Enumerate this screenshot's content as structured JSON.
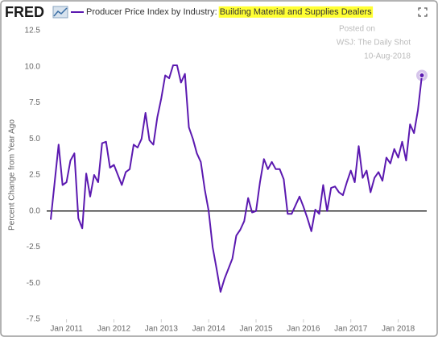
{
  "chart_data": {
    "type": "line",
    "brand": "FRED",
    "ylabel": "Percent Change from Year Ago",
    "annotations": [
      "Posted on",
      "WSJ: The Daily Shot",
      "10-Aug-2018"
    ],
    "x": [
      "2010-09",
      "2010-10",
      "2010-11",
      "2010-12",
      "2011-01",
      "2011-02",
      "2011-03",
      "2011-04",
      "2011-05",
      "2011-06",
      "2011-07",
      "2011-08",
      "2011-09",
      "2011-10",
      "2011-11",
      "2011-12",
      "2012-01",
      "2012-02",
      "2012-03",
      "2012-04",
      "2012-05",
      "2012-06",
      "2012-07",
      "2012-08",
      "2012-09",
      "2012-10",
      "2012-11",
      "2012-12",
      "2013-01",
      "2013-02",
      "2013-03",
      "2013-04",
      "2013-05",
      "2013-06",
      "2013-07",
      "2013-08",
      "2013-09",
      "2013-10",
      "2013-11",
      "2013-12",
      "2014-01",
      "2014-02",
      "2014-03",
      "2014-04",
      "2014-05",
      "2014-06",
      "2014-07",
      "2014-08",
      "2014-09",
      "2014-10",
      "2014-11",
      "2014-12",
      "2015-01",
      "2015-02",
      "2015-03",
      "2015-04",
      "2015-05",
      "2015-06",
      "2015-07",
      "2015-08",
      "2015-09",
      "2015-10",
      "2015-11",
      "2015-12",
      "2016-01",
      "2016-02",
      "2016-03",
      "2016-04",
      "2016-05",
      "2016-06",
      "2016-07",
      "2016-08",
      "2016-09",
      "2016-10",
      "2016-11",
      "2016-12",
      "2017-01",
      "2017-02",
      "2017-03",
      "2017-04",
      "2017-05",
      "2017-06",
      "2017-07",
      "2017-08",
      "2017-09",
      "2017-10",
      "2017-11",
      "2017-12",
      "2018-01",
      "2018-02",
      "2018-03",
      "2018-04",
      "2018-05",
      "2018-06",
      "2018-07"
    ],
    "series": [
      {
        "name": "Producer Price Index by Industry: Building Material and Supplies Dealers",
        "color": "#5b19b0",
        "values": [
          -0.6,
          2.0,
          4.6,
          1.8,
          2.0,
          3.5,
          4.0,
          -0.5,
          -1.2,
          2.6,
          1.0,
          2.5,
          2.0,
          4.7,
          4.8,
          3.0,
          3.2,
          2.5,
          1.8,
          2.7,
          2.9,
          4.6,
          4.4,
          5.0,
          6.8,
          4.9,
          4.6,
          6.5,
          7.8,
          9.4,
          9.2,
          10.1,
          10.1,
          8.9,
          9.5,
          5.8,
          5.0,
          4.0,
          3.4,
          1.5,
          0.0,
          -2.5,
          -4.0,
          -5.6,
          -4.7,
          -4.0,
          -3.3,
          -1.7,
          -1.3,
          -0.7,
          0.9,
          -0.1,
          0.0,
          2.0,
          3.6,
          2.9,
          3.4,
          2.9,
          2.9,
          2.2,
          -0.2,
          -0.2,
          0.4,
          1.0,
          0.3,
          -0.5,
          -1.4,
          0.1,
          -0.2,
          1.8,
          0.0,
          1.6,
          1.7,
          1.3,
          1.1,
          2.0,
          2.8,
          2.0,
          4.5,
          2.3,
          2.8,
          1.3,
          2.3,
          2.7,
          2.1,
          3.7,
          3.3,
          4.3,
          3.7,
          4.8,
          3.5,
          6.0,
          5.4,
          7.0,
          9.4
        ]
      }
    ],
    "xlim": [
      "2010-09",
      "2018-07"
    ],
    "xticks": [
      {
        "value": "2011-01",
        "label": "Jan 2011"
      },
      {
        "value": "2012-01",
        "label": "Jan 2012"
      },
      {
        "value": "2013-01",
        "label": "Jan 2013"
      },
      {
        "value": "2014-01",
        "label": "Jan 2014"
      },
      {
        "value": "2015-01",
        "label": "Jan 2015"
      },
      {
        "value": "2016-01",
        "label": "Jan 2016"
      },
      {
        "value": "2017-01",
        "label": "Jan 2017"
      },
      {
        "value": "2018-01",
        "label": "Jan 2018"
      }
    ],
    "ylim": [
      -7.5,
      12.5
    ],
    "yticks": [
      12.5,
      {
        "value": 10,
        "label": "10.0"
      },
      7.5,
      {
        "value": 5,
        "label": "5.0"
      },
      2.5,
      {
        "value": 0,
        "label": "0.0"
      },
      -2.5,
      {
        "value": -5,
        "label": "-5.0"
      },
      -7.5
    ],
    "grid": false
  }
}
